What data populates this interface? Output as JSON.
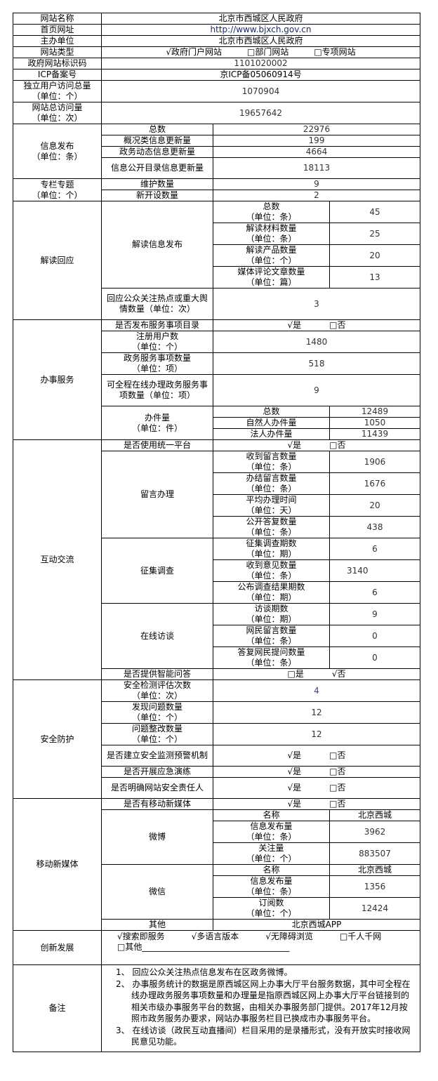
{
  "basic": {
    "site_name": {
      "label": "网站名称",
      "value": "北京市西城区人民政府"
    },
    "homepage": {
      "label": "首页网址",
      "value": "http://www.bjxch.gov.cn"
    },
    "host": {
      "label": "主办单位",
      "value": "北京市西城区人民政府"
    },
    "site_type": {
      "label": "网站类型",
      "options": [
        "√政府门户网站",
        "□部门网站",
        "□专项网站"
      ]
    },
    "gov_id": {
      "label": "政府网站标识码",
      "value": "1101020002"
    },
    "icp": {
      "label": "ICP备案号",
      "value": "京ICP备05060914号"
    },
    "unique_visitors": {
      "label": "独立用户访问总量",
      "unit": "（单位：个）",
      "value": "1070904"
    },
    "total_visits": {
      "label": "网站总访问量",
      "unit": "（单位：次）",
      "value": "19657642"
    }
  },
  "info": {
    "label": "信息发布",
    "unit": "（单位：条）",
    "rows": [
      {
        "label": "总数",
        "value": "22976"
      },
      {
        "label": "概况类信息更新量",
        "value": "199"
      },
      {
        "label": "政务动态信息更新量",
        "value": "4664"
      },
      {
        "label": "信息公开目录信息更新量",
        "value": "18113"
      }
    ]
  },
  "columns": {
    "label": "专栏专题",
    "unit": "（单位：个）",
    "rows": [
      {
        "label": "维护数量",
        "value": "9"
      },
      {
        "label": "新开设数量",
        "value": "2"
      }
    ]
  },
  "interpret": {
    "label": "解读回应",
    "sub_label": "解读信息发布",
    "rows": [
      {
        "label": "总数",
        "unit": "（单位：条）",
        "value": "45"
      },
      {
        "label": "解读材料数量",
        "unit": "（单位：条）",
        "value": "25"
      },
      {
        "label": "解读产品数量",
        "unit": "（单位：个）",
        "value": "20"
      },
      {
        "label": "媒体评论文章数量",
        "unit": "（单位：篇）",
        "value": "13"
      }
    ],
    "response": {
      "label": "回应公众关注热点或重大舆情数量（单位：次）",
      "value": "3"
    }
  },
  "yn": {
    "yes_checked": "√是",
    "no_unchecked": "□否",
    "yes_unchecked": "□是",
    "no_checked": "√否"
  },
  "service": {
    "label": "办事服务",
    "catalog": {
      "label": "是否发布服务事项目录"
    },
    "users": {
      "label": "注册用户数",
      "unit": "（单位：个）",
      "value": "1480"
    },
    "items": {
      "label": "政务服务事项数量",
      "unit": "（单位：项）",
      "value": "518"
    },
    "online": {
      "label": "可全程在线办理政务服务事项数量（单位：项）",
      "value": "9"
    },
    "cases": {
      "label": "办件量",
      "unit": "（单位：件）",
      "rows": [
        {
          "label": "总数",
          "value": "12489"
        },
        {
          "label": "自然人办件量",
          "value": "1050"
        },
        {
          "label": "法人办件量",
          "value": "11439"
        }
      ]
    }
  },
  "interact": {
    "label": "互动交流",
    "platform": {
      "label": "是否使用统一平台"
    },
    "groups": [
      {
        "label": "留言办理",
        "rows": [
          {
            "label": "收到留言数量",
            "unit": "（单位：条）",
            "value": "1906"
          },
          {
            "label": "办结留言数量",
            "unit": "（单位：条）",
            "value": "1676"
          },
          {
            "label": "平均办理时间",
            "unit": "（单位：天）",
            "value": "20"
          },
          {
            "label": "公开答复数量",
            "unit": "（单位：条）",
            "value": "438"
          }
        ]
      },
      {
        "label": "征集调查",
        "rows": [
          {
            "label": "征集调查期数",
            "unit": "（单位：期）",
            "value": "6"
          },
          {
            "label": "收到意见数量",
            "unit": "（单位：条）",
            "value": "3140"
          },
          {
            "label": "公布调查结果期数",
            "unit": "（单位：期）",
            "value": "6"
          }
        ]
      },
      {
        "label": "在线访谈",
        "rows": [
          {
            "label": "访谈期数",
            "unit": "（单位：期）",
            "value": "9"
          },
          {
            "label": "网民留言数量",
            "unit": "（单位：条）",
            "value": "0"
          },
          {
            "label": "答复网民提问数量",
            "unit": "（单位：条）",
            "value": "0"
          }
        ]
      }
    ],
    "qa": {
      "label": "是否提供智能问答"
    }
  },
  "security": {
    "label": "安全防护",
    "checks": {
      "label": "安全检测评估次数",
      "unit": "（单位：次）",
      "value": "4"
    },
    "found": {
      "label": "发现问题数量",
      "unit": "（单位：个）",
      "value": "12"
    },
    "fixed": {
      "label": "问题整改数量",
      "unit": "（单位：个）",
      "value": "12"
    },
    "warning": {
      "label": "是否建立安全监测预警机制"
    },
    "drill": {
      "label": "是否开展应急演练"
    },
    "owner": {
      "label": "是否明确网站安全责任人"
    }
  },
  "media": {
    "label": "移动新媒体",
    "has": {
      "label": "是否有移动新媒体"
    },
    "weibo": {
      "label": "微博",
      "name_label": "名称",
      "name": "北京西城",
      "posts": {
        "label": "信息发布量",
        "unit": "（单位：条）",
        "value": "3962"
      },
      "followers": {
        "label": "关注量",
        "unit": "（单位：个）",
        "value": "883507"
      }
    },
    "wechat": {
      "label": "微信",
      "name_label": "名称",
      "name": "北京西城",
      "posts": {
        "label": "信息发布量",
        "unit": "（单位：条）",
        "value": "1356"
      },
      "subs": {
        "label": "订阅数",
        "unit": "（单位：个）",
        "value": "12424"
      }
    },
    "other": {
      "label": "其他",
      "value": "北京西城APP"
    }
  },
  "innovation": {
    "label": "创新发展",
    "options": [
      "√搜索即服务",
      "√多语言版本",
      "√无障碍浏览",
      "□千人千网"
    ],
    "other": "□其他___________________________________"
  },
  "notes": {
    "label": "备注",
    "items": [
      "1、 回应公众关注热点信息发布在区政务微博。",
      "2、 办事服务统计的数据是原西城区网上办事大厅平台服务数据，其中可全程在线办理政务服务事项数量和办理量是指原西城区网上办事大厅平台链接到的相关市级办事服务平台的数据，由相关办事服务部门提供。2017年12月按照市政务服务办要求，网站办事服务栏目已换成市办事服务平台。",
      "3、 在线访谈（政民互动直播间）栏目采用的是录播形式，没有开放实时接收网民意见功能。"
    ]
  }
}
